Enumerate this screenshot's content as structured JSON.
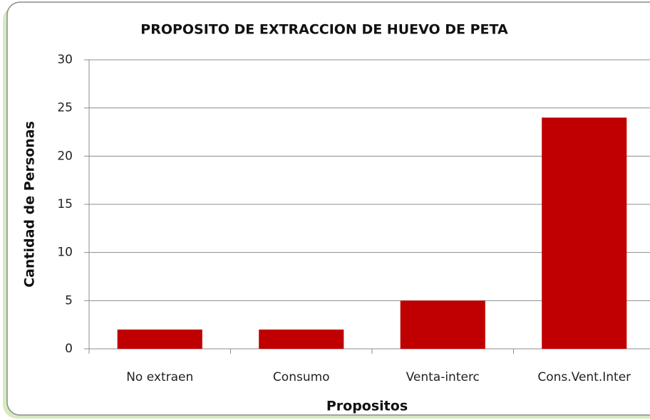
{
  "chart_data": {
    "type": "bar",
    "title": "PROPOSITO DE EXTRACCION DE HUEVO DE PETA",
    "x_label": "Propositos",
    "y_label": "Cantidad  de Personas",
    "categories": [
      "No extraen",
      "Consumo",
      "Venta-interc",
      "Cons.Vent.Inter"
    ],
    "values": [
      2,
      2,
      5,
      24
    ],
    "color": "#c00000",
    "ylim": [
      0,
      30
    ],
    "yticks": [
      0,
      5,
      10,
      15,
      20,
      25,
      30
    ],
    "grid": true
  }
}
